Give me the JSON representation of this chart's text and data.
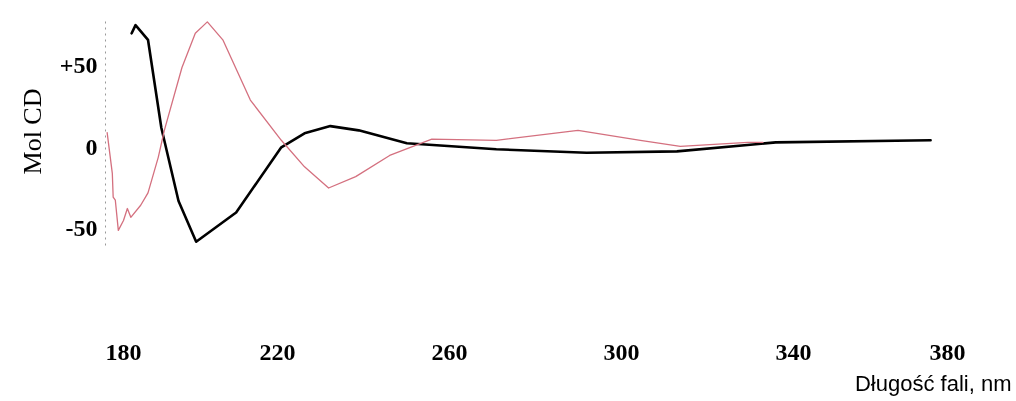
{
  "chart_data": {
    "type": "line",
    "xlabel": "Długość fali, nm",
    "ylabel": "Mol CD",
    "xlim": [
      180,
      380
    ],
    "xticks": [
      180,
      220,
      260,
      300,
      340,
      380
    ],
    "ylim": [
      -60,
      80
    ],
    "yticks": [
      {
        "value": 50,
        "label": "+50"
      },
      0,
      -50
    ],
    "grid": false,
    "line_style": "solid",
    "marker": "none",
    "series": [
      {
        "color": "#000000",
        "x": [
          186.2,
          187.1,
          190,
          193.1,
          197.1,
          201.2,
          210.5,
          221,
          226.4,
          232.4,
          239,
          250.2,
          271,
          292,
          313,
          336,
          372
        ],
        "values": [
          70,
          75,
          66,
          12,
          -33,
          -58,
          -40,
          0,
          8.6,
          13,
          10.4,
          2.5,
          -1.2,
          -3.4,
          -2.5,
          3,
          4.3
        ]
      },
      {
        "color": "#d4707f",
        "x": [
          180.5,
          181.7,
          181.9,
          182.4,
          183.1,
          184.3,
          185.2,
          186,
          188.3,
          190,
          192.4,
          193.8,
          197.9,
          201,
          203.8,
          207.4,
          213.8,
          221,
          226.4,
          232,
          238.3,
          246.2,
          256,
          271,
          290,
          304.5,
          313.8,
          329.5,
          333
        ],
        "values": [
          9,
          -16,
          -30.6,
          -32.5,
          -51,
          -45,
          -37.6,
          -43,
          -35.6,
          -28,
          -6,
          10.4,
          49,
          70,
          77,
          66,
          29,
          4.3,
          -12,
          -25,
          -18,
          -5,
          5,
          4.3,
          10.4,
          4.3,
          0.6,
          3,
          3
        ]
      }
    ]
  }
}
